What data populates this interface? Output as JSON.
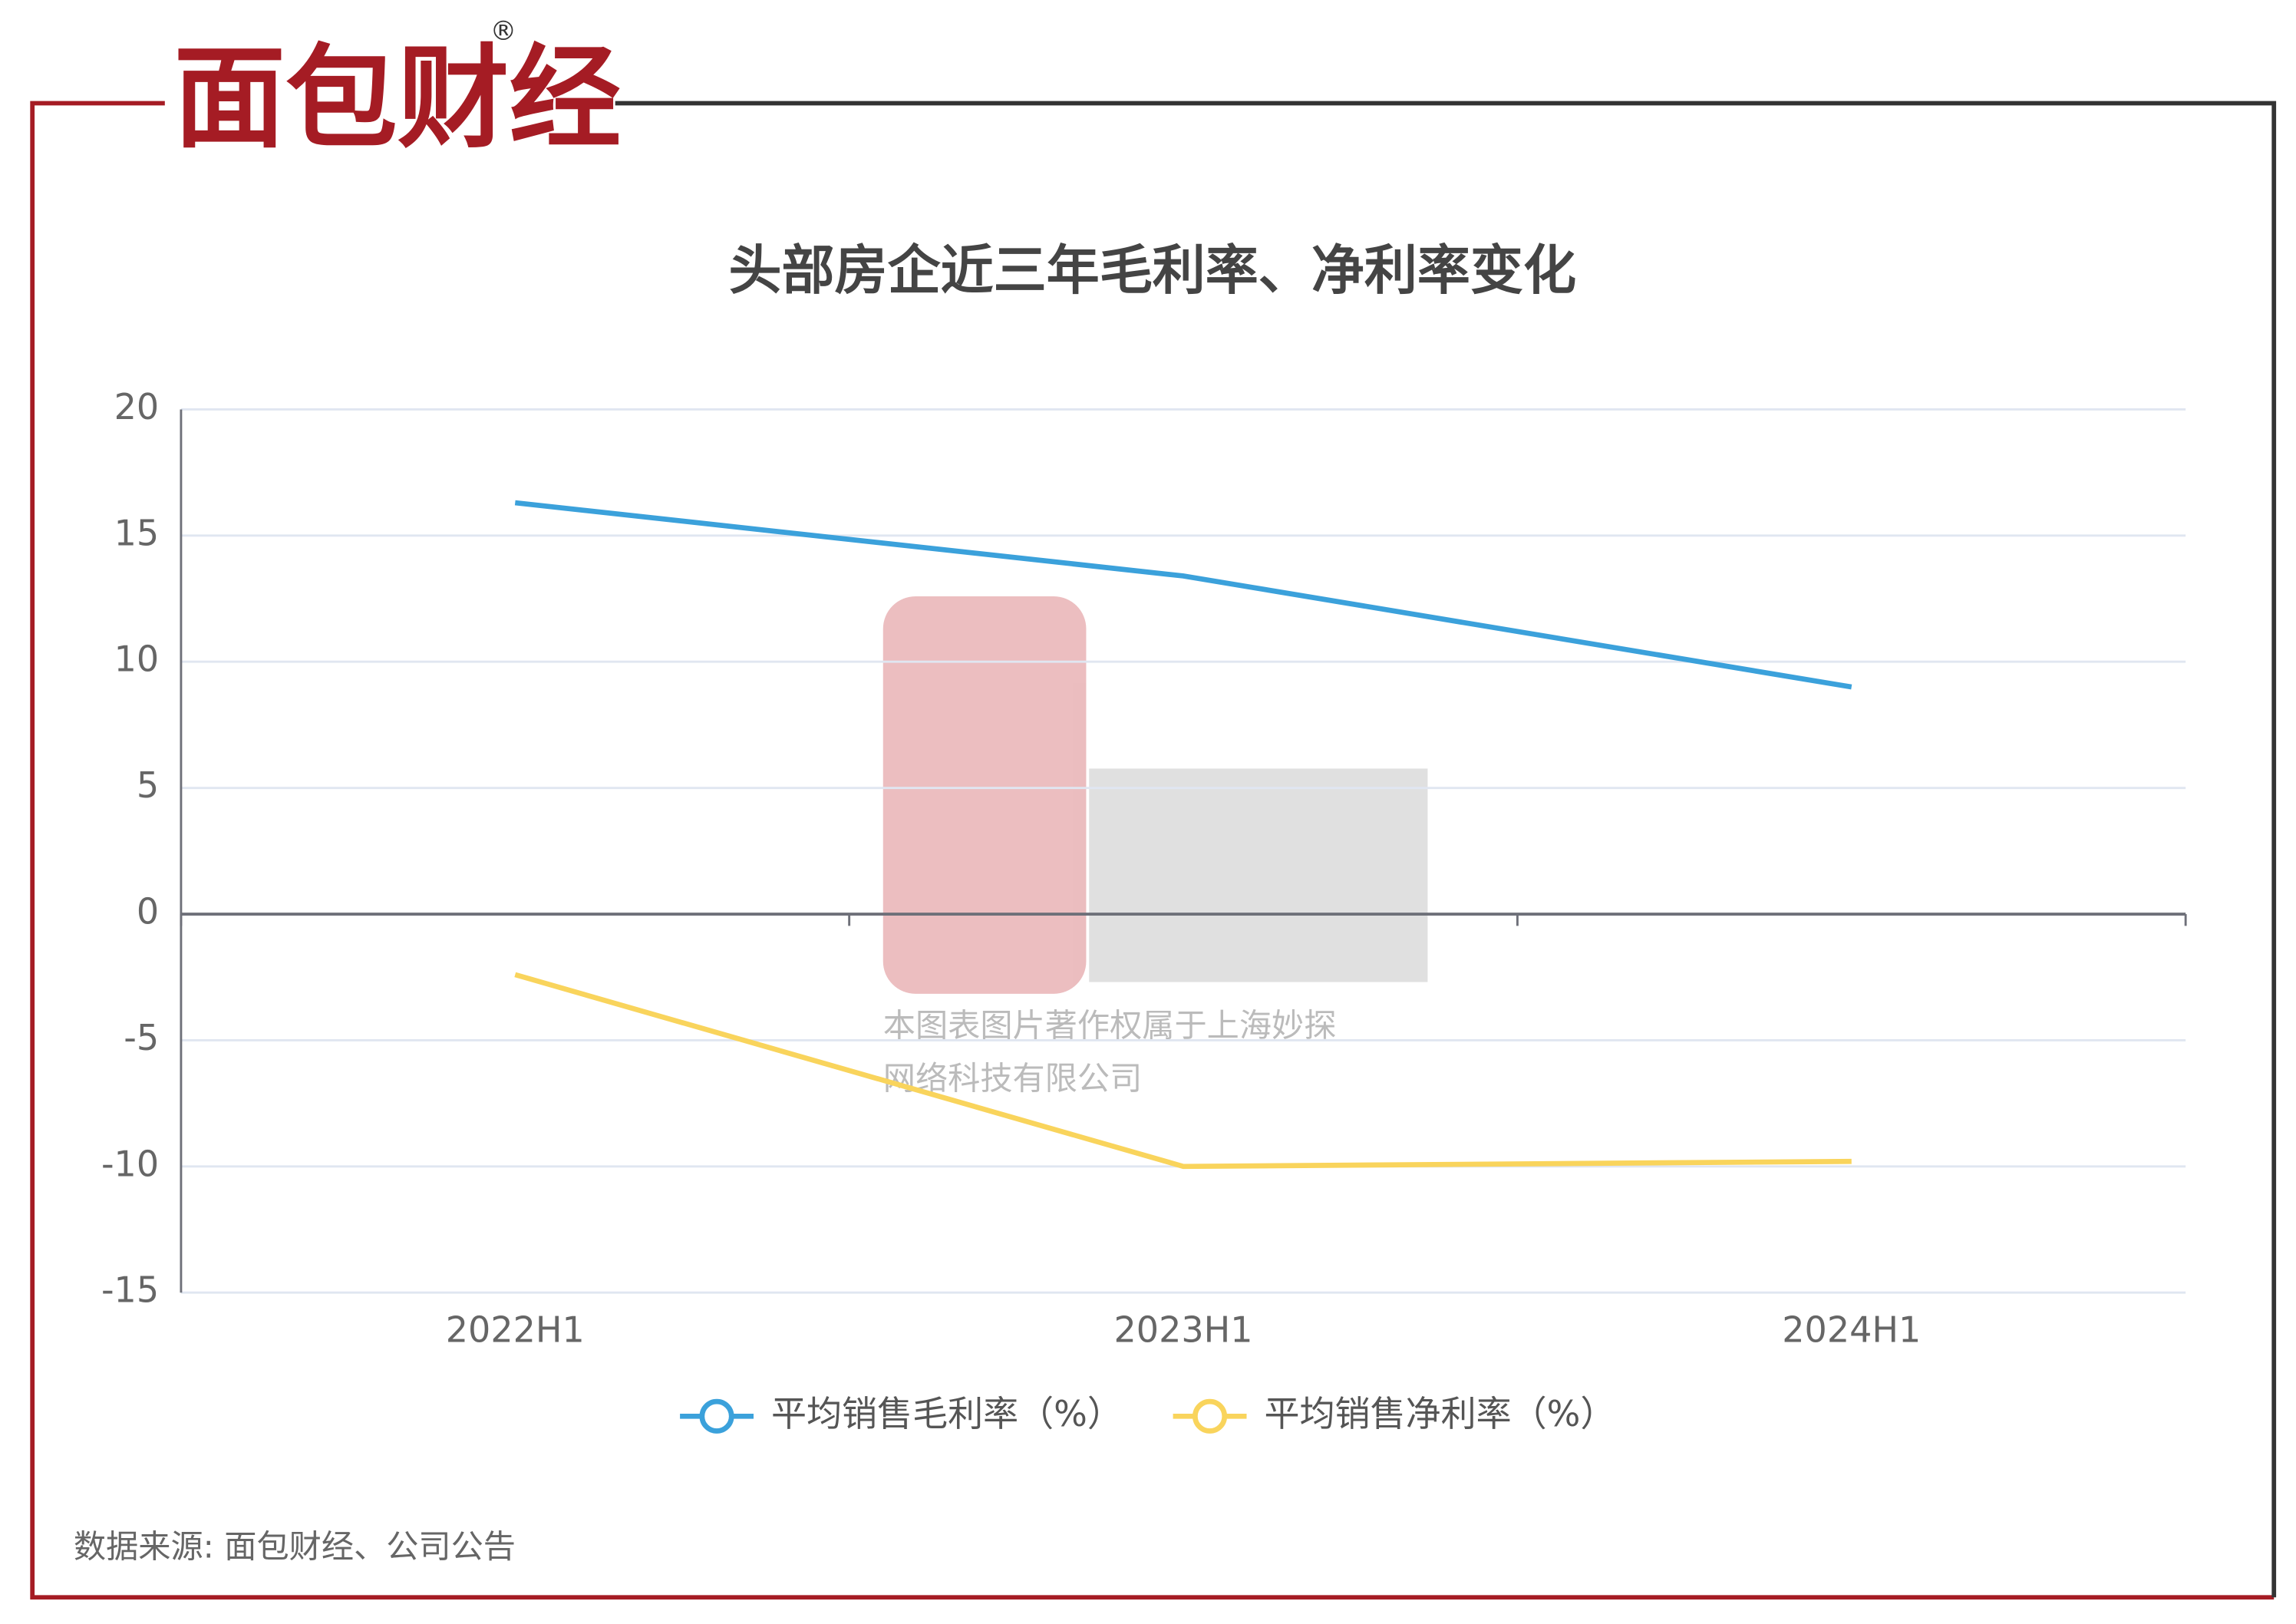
{
  "brand": {
    "name": "面包财经",
    "mark": "®"
  },
  "watermark": {
    "lines": [
      "本图表图片著作权属于上海妙探",
      "网络科技有限公司"
    ]
  },
  "source": "数据来源: 面包财经、公司公告",
  "chart_data": {
    "type": "line",
    "title": "头部房企近三年毛利率、净利率变化",
    "categories": [
      "2022H1",
      "2023H1",
      "2024H1"
    ],
    "series": [
      {
        "name": "平均销售毛利率（%）",
        "color": "#3ba1db",
        "values": [
          16.3,
          13.4,
          9.0
        ]
      },
      {
        "name": "平均销售净利率（%）",
        "color": "#f9d45c",
        "values": [
          -2.4,
          -10.0,
          -9.8
        ]
      }
    ],
    "ylim": [
      -15,
      20
    ],
    "yticks": [
      -15,
      -10,
      -5,
      0,
      5,
      10,
      15,
      20
    ],
    "grid": true,
    "legend": "bottom"
  }
}
